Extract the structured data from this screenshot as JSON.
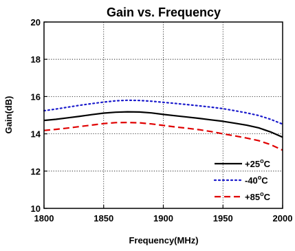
{
  "chart_data": {
    "type": "line",
    "title": "Gain vs. Frequency",
    "xlabel": "Frequency(MHz)",
    "ylabel": "Gain(dB)",
    "xlim": [
      1800,
      2000
    ],
    "ylim": [
      10,
      20
    ],
    "xticks": [
      1800,
      1850,
      1900,
      1950,
      2000
    ],
    "yticks": [
      10,
      12,
      14,
      16,
      18,
      20
    ],
    "grid": true,
    "legend_position": "bottom-right",
    "x": [
      1800,
      1810,
      1820,
      1830,
      1840,
      1850,
      1860,
      1870,
      1880,
      1890,
      1900,
      1910,
      1920,
      1930,
      1940,
      1950,
      1960,
      1970,
      1980,
      1990,
      2000
    ],
    "series": [
      {
        "name": "+25°C",
        "label_main": "+25",
        "label_sup": "o",
        "label_unit": "C",
        "color": "#000000",
        "dash": "solid",
        "values": [
          14.72,
          14.78,
          14.86,
          14.94,
          15.03,
          15.11,
          15.16,
          15.18,
          15.17,
          15.12,
          15.04,
          14.97,
          14.9,
          14.83,
          14.75,
          14.67,
          14.57,
          14.46,
          14.32,
          14.1,
          13.82
        ]
      },
      {
        "name": "-40°C",
        "label_main": "-40",
        "label_sup": "o",
        "label_unit": "C",
        "color": "#1a1acc",
        "dash": "dotted",
        "values": [
          15.24,
          15.33,
          15.43,
          15.53,
          15.62,
          15.7,
          15.77,
          15.8,
          15.79,
          15.75,
          15.69,
          15.63,
          15.57,
          15.5,
          15.43,
          15.35,
          15.24,
          15.12,
          14.98,
          14.78,
          14.52
        ]
      },
      {
        "name": "+85°C",
        "label_main": "+85",
        "label_sup": "o",
        "label_unit": "C",
        "color": "#e00000",
        "dash": "dashed",
        "values": [
          14.18,
          14.24,
          14.31,
          14.39,
          14.47,
          14.55,
          14.6,
          14.61,
          14.59,
          14.53,
          14.45,
          14.37,
          14.3,
          14.22,
          14.12,
          14.0,
          13.89,
          13.77,
          13.63,
          13.42,
          13.12
        ]
      }
    ]
  }
}
